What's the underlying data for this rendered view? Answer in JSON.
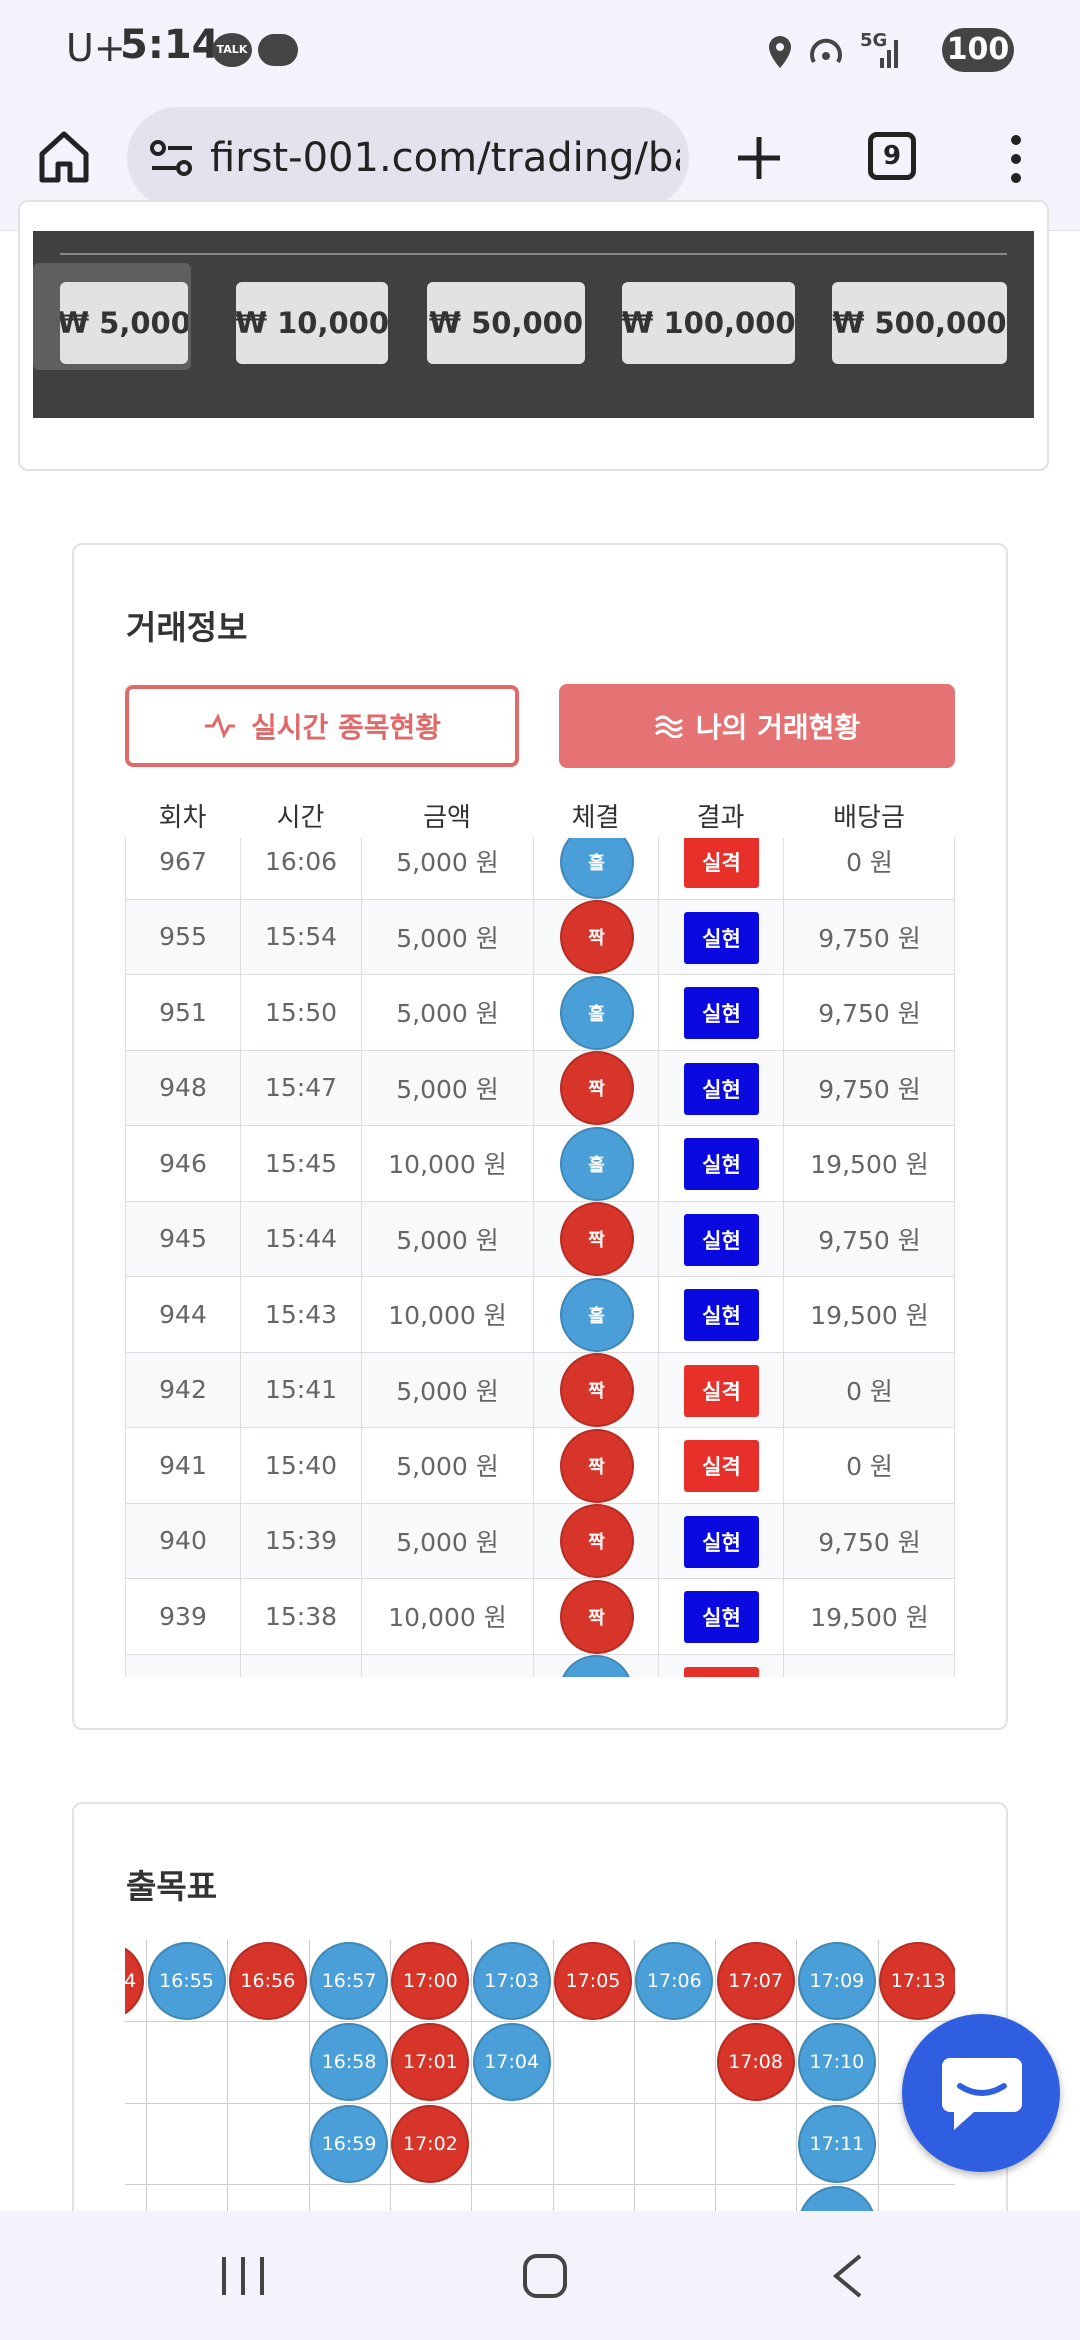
{
  "status_bar": {
    "carrier": "U+",
    "time": "5:14",
    "talk": "TALK",
    "network": "5G",
    "battery": "100"
  },
  "browser": {
    "url": "first-001.com/trading/ba",
    "tab_count": "9"
  },
  "amount_buttons": [
    "₩ 5,000",
    "₩ 10,000",
    "₩ 50,000",
    "₩ 100,000",
    "₩ 500,000"
  ],
  "trade_info": {
    "title": "거래정보",
    "tabs": [
      "실시간 종목현황",
      "나의 거래현황"
    ],
    "columns": [
      "회차",
      "시간",
      "금액",
      "체결",
      "결과",
      "배당금"
    ],
    "rows": [
      {
        "round": "967",
        "time": "16:06",
        "amount": "5,000 원",
        "side": "홀",
        "side_color": "#4a9fd8",
        "result": "실격",
        "result_color": "#e8302a",
        "payout": "0 원"
      },
      {
        "round": "955",
        "time": "15:54",
        "amount": "5,000 원",
        "side": "짝",
        "side_color": "#d7342a",
        "result": "실현",
        "result_color": "#0a0ae0",
        "payout": "9,750 원"
      },
      {
        "round": "951",
        "time": "15:50",
        "amount": "5,000 원",
        "side": "홀",
        "side_color": "#4a9fd8",
        "result": "실현",
        "result_color": "#0a0ae0",
        "payout": "9,750 원"
      },
      {
        "round": "948",
        "time": "15:47",
        "amount": "5,000 원",
        "side": "짝",
        "side_color": "#d7342a",
        "result": "실현",
        "result_color": "#0a0ae0",
        "payout": "9,750 원"
      },
      {
        "round": "946",
        "time": "15:45",
        "amount": "10,000 원",
        "side": "홀",
        "side_color": "#4a9fd8",
        "result": "실현",
        "result_color": "#0a0ae0",
        "payout": "19,500 원"
      },
      {
        "round": "945",
        "time": "15:44",
        "amount": "5,000 원",
        "side": "짝",
        "side_color": "#d7342a",
        "result": "실현",
        "result_color": "#0a0ae0",
        "payout": "9,750 원"
      },
      {
        "round": "944",
        "time": "15:43",
        "amount": "10,000 원",
        "side": "홀",
        "side_color": "#4a9fd8",
        "result": "실현",
        "result_color": "#0a0ae0",
        "payout": "19,500 원"
      },
      {
        "round": "942",
        "time": "15:41",
        "amount": "5,000 원",
        "side": "짝",
        "side_color": "#d7342a",
        "result": "실격",
        "result_color": "#e8302a",
        "payout": "0 원"
      },
      {
        "round": "941",
        "time": "15:40",
        "amount": "5,000 원",
        "side": "짝",
        "side_color": "#d7342a",
        "result": "실격",
        "result_color": "#e8302a",
        "payout": "0 원"
      },
      {
        "round": "940",
        "time": "15:39",
        "amount": "5,000 원",
        "side": "짝",
        "side_color": "#d7342a",
        "result": "실현",
        "result_color": "#0a0ae0",
        "payout": "9,750 원"
      },
      {
        "round": "939",
        "time": "15:38",
        "amount": "10,000 원",
        "side": "짝",
        "side_color": "#d7342a",
        "result": "실현",
        "result_color": "#0a0ae0",
        "payout": "19,500 원"
      }
    ]
  },
  "result_board": {
    "title": "출목표",
    "columns": [
      {
        "color": "#d7342a",
        "items": [
          "4"
        ]
      },
      {
        "color": "#4a9fd8",
        "items": [
          "16:55"
        ]
      },
      {
        "color": "#d7342a",
        "items": [
          "16:56"
        ]
      },
      {
        "color": "#4a9fd8",
        "items": [
          "16:57",
          "16:58",
          "16:59"
        ]
      },
      {
        "color": "#d7342a",
        "items": [
          "17:00",
          "17:01",
          "17:02"
        ]
      },
      {
        "color": "#4a9fd8",
        "items": [
          "17:03",
          "17:04"
        ]
      },
      {
        "color": "#d7342a",
        "items": [
          "17:05"
        ]
      },
      {
        "color": "#4a9fd8",
        "items": [
          "17:06"
        ]
      },
      {
        "color": "#d7342a",
        "items": [
          "17:07",
          "17:08"
        ]
      },
      {
        "color": "#4a9fd8",
        "items": [
          "17:09",
          "17:10",
          "17:11"
        ]
      },
      {
        "color": "#d7342a",
        "items": [
          "17:13"
        ]
      }
    ]
  }
}
